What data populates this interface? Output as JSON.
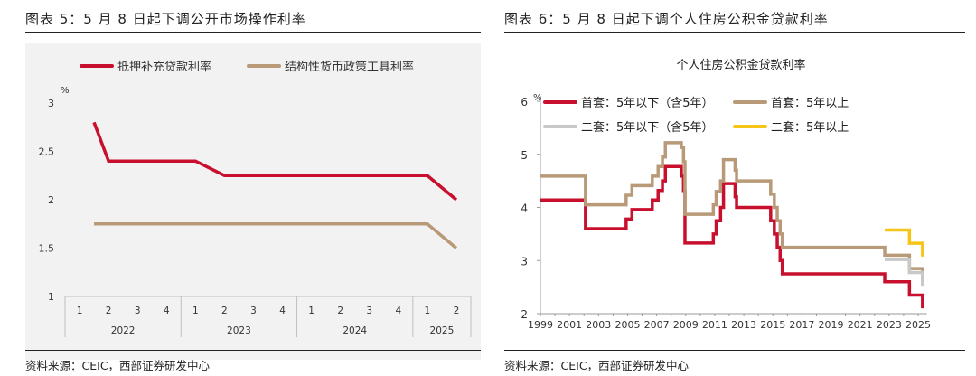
{
  "left": {
    "title": "图表 5：5 月 8 日起下调公开市场操作利率",
    "source": "资料来源：CEIC，西部证券研发中心",
    "chart_data": {
      "type": "line",
      "unit": "%",
      "ylim": [
        1,
        3
      ],
      "yticks": [
        "1",
        "1.5",
        "2",
        "2.5",
        "3"
      ],
      "quarter_labels": [
        "1",
        "2",
        "3",
        "4",
        "1",
        "2",
        "3",
        "4",
        "1",
        "2",
        "3",
        "4",
        "1",
        "2"
      ],
      "year_labels": [
        "2022",
        "2023",
        "2024",
        "2025"
      ],
      "series": [
        {
          "name": "抵押补充贷款利率",
          "color": "#c8102e",
          "points": [
            [
              1,
              2.8
            ],
            [
              1.5,
              2.4
            ],
            [
              4.5,
              2.4
            ],
            [
              5.5,
              2.25
            ],
            [
              12.5,
              2.25
            ],
            [
              13.5,
              2.0
            ]
          ]
        },
        {
          "name": "结构性货币政策工具利率",
          "color": "#b89a78",
          "points": [
            [
              1,
              1.75
            ],
            [
              12.5,
              1.75
            ],
            [
              13.5,
              1.5
            ]
          ]
        }
      ],
      "grid": false,
      "legend": "top"
    }
  },
  "right": {
    "title": "图表 6：5 月 8 日起下调个人住房公积金贷款利率",
    "source": "资料来源：CEIC，西部证券研发中心",
    "chart_data": {
      "type": "line",
      "title": "个人住房公积金贷款利率",
      "unit": "%",
      "ylim": [
        2,
        6
      ],
      "yticks": [
        "2",
        "3",
        "4",
        "5",
        "6"
      ],
      "xlim": [
        1999,
        2025.5
      ],
      "xticks": [
        "1999",
        "2001",
        "2003",
        "2005",
        "2007",
        "2009",
        "2011",
        "2013",
        "2015",
        "2017",
        "2019",
        "2021",
        "2023",
        "2025"
      ],
      "series": [
        {
          "name": "首套：5年以下（含5年）",
          "color": "#c8102e",
          "points": [
            [
              1999,
              4.14
            ],
            [
              2002.1,
              4.14
            ],
            [
              2002.1,
              3.6
            ],
            [
              2004.9,
              3.6
            ],
            [
              2004.9,
              3.78
            ],
            [
              2005.3,
              3.78
            ],
            [
              2005.3,
              3.96
            ],
            [
              2006.7,
              3.96
            ],
            [
              2006.7,
              4.14
            ],
            [
              2007.1,
              4.14
            ],
            [
              2007.1,
              4.32
            ],
            [
              2007.4,
              4.32
            ],
            [
              2007.4,
              4.5
            ],
            [
              2007.6,
              4.5
            ],
            [
              2007.6,
              4.77
            ],
            [
              2008.7,
              4.77
            ],
            [
              2008.7,
              4.59
            ],
            [
              2008.85,
              4.59
            ],
            [
              2008.85,
              4.32
            ],
            [
              2008.95,
              4.32
            ],
            [
              2008.95,
              3.33
            ],
            [
              2010.9,
              3.33
            ],
            [
              2010.9,
              3.5
            ],
            [
              2011.1,
              3.5
            ],
            [
              2011.1,
              3.75
            ],
            [
              2011.4,
              3.75
            ],
            [
              2011.4,
              4.0
            ],
            [
              2011.6,
              4.0
            ],
            [
              2011.6,
              4.45
            ],
            [
              2012.4,
              4.45
            ],
            [
              2012.4,
              4.2
            ],
            [
              2012.5,
              4.2
            ],
            [
              2012.5,
              4.0
            ],
            [
              2014.85,
              4.0
            ],
            [
              2014.85,
              3.75
            ],
            [
              2015.1,
              3.75
            ],
            [
              2015.1,
              3.5
            ],
            [
              2015.3,
              3.5
            ],
            [
              2015.3,
              3.25
            ],
            [
              2015.5,
              3.25
            ],
            [
              2015.5,
              3.0
            ],
            [
              2015.65,
              3.0
            ],
            [
              2015.65,
              2.75
            ],
            [
              2022.7,
              2.75
            ],
            [
              2022.7,
              2.6
            ],
            [
              2024.4,
              2.6
            ],
            [
              2024.4,
              2.35
            ],
            [
              2025.3,
              2.35
            ],
            [
              2025.3,
              2.1
            ]
          ]
        },
        {
          "name": "首套：5年以上",
          "color": "#b89a78",
          "points": [
            [
              1999,
              4.59
            ],
            [
              2002.1,
              4.59
            ],
            [
              2002.1,
              4.05
            ],
            [
              2004.9,
              4.05
            ],
            [
              2004.9,
              4.23
            ],
            [
              2005.3,
              4.23
            ],
            [
              2005.3,
              4.41
            ],
            [
              2006.7,
              4.41
            ],
            [
              2006.7,
              4.59
            ],
            [
              2007.1,
              4.59
            ],
            [
              2007.1,
              4.77
            ],
            [
              2007.4,
              4.77
            ],
            [
              2007.4,
              4.95
            ],
            [
              2007.6,
              4.95
            ],
            [
              2007.6,
              5.22
            ],
            [
              2008.7,
              5.22
            ],
            [
              2008.7,
              5.13
            ],
            [
              2008.85,
              5.13
            ],
            [
              2008.85,
              4.86
            ],
            [
              2008.95,
              4.86
            ],
            [
              2008.95,
              3.87
            ],
            [
              2010.9,
              3.87
            ],
            [
              2010.9,
              4.05
            ],
            [
              2011.1,
              4.05
            ],
            [
              2011.1,
              4.3
            ],
            [
              2011.4,
              4.3
            ],
            [
              2011.4,
              4.5
            ],
            [
              2011.6,
              4.5
            ],
            [
              2011.6,
              4.9
            ],
            [
              2012.4,
              4.9
            ],
            [
              2012.4,
              4.7
            ],
            [
              2012.5,
              4.7
            ],
            [
              2012.5,
              4.5
            ],
            [
              2014.85,
              4.5
            ],
            [
              2014.85,
              4.25
            ],
            [
              2015.1,
              4.25
            ],
            [
              2015.1,
              4.0
            ],
            [
              2015.3,
              4.0
            ],
            [
              2015.3,
              3.75
            ],
            [
              2015.5,
              3.75
            ],
            [
              2015.5,
              3.5
            ],
            [
              2015.65,
              3.5
            ],
            [
              2015.65,
              3.25
            ],
            [
              2022.7,
              3.25
            ],
            [
              2022.7,
              3.1
            ],
            [
              2024.4,
              3.1
            ],
            [
              2024.4,
              2.85
            ],
            [
              2025.3,
              2.85
            ],
            [
              2025.3,
              2.6
            ]
          ]
        },
        {
          "name": "二套：5年以下（含5年）",
          "color": "#c8c8c8",
          "points": [
            [
              2022.7,
              3.02
            ],
            [
              2024.4,
              3.02
            ],
            [
              2024.4,
              2.775
            ],
            [
              2025.3,
              2.775
            ],
            [
              2025.3,
              2.525
            ]
          ]
        },
        {
          "name": "二套：5年以上",
          "color": "#f5c518",
          "points": [
            [
              2022.7,
              3.575
            ],
            [
              2024.4,
              3.575
            ],
            [
              2024.4,
              3.325
            ],
            [
              2025.3,
              3.325
            ],
            [
              2025.3,
              3.075
            ]
          ]
        }
      ],
      "grid": false,
      "legend": "top-left"
    }
  }
}
